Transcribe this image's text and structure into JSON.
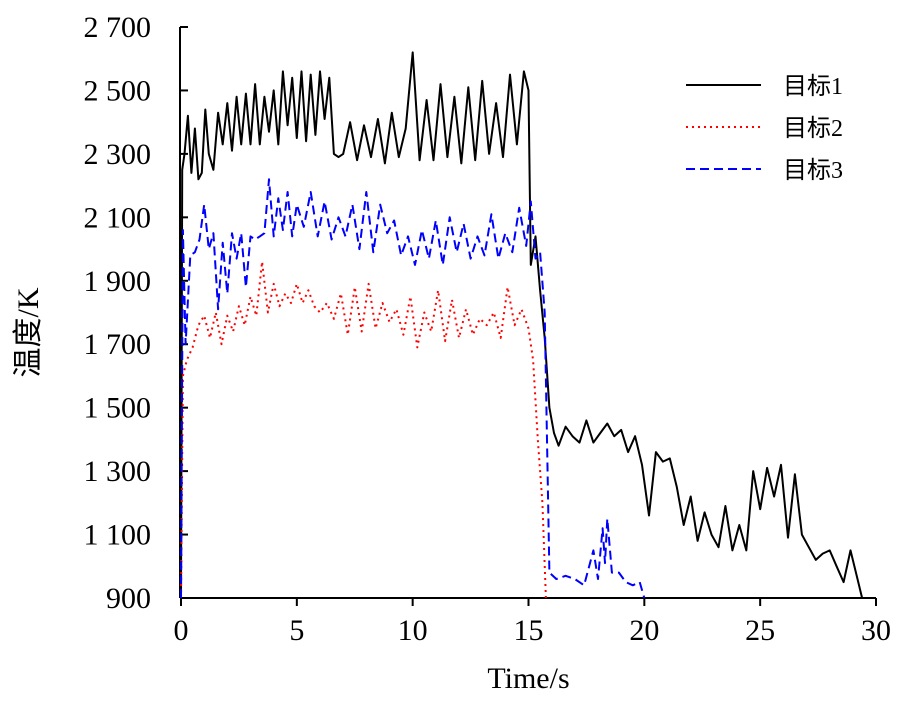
{
  "chart_data": {
    "type": "line",
    "xlabel": "Time/s",
    "ylabel": "温度/K",
    "xlim": [
      0,
      30
    ],
    "ylim": [
      900,
      2700
    ],
    "x_ticks": [
      0,
      5,
      10,
      15,
      20,
      25,
      30
    ],
    "x_tick_labels": [
      "0",
      "5",
      "10",
      "15",
      "20",
      "25",
      "30"
    ],
    "y_ticks": [
      900,
      1100,
      1300,
      1500,
      1700,
      1900,
      2100,
      2300,
      2500,
      2700
    ],
    "y_tick_labels": [
      "900",
      "1 100",
      "1 300",
      "1 500",
      "1 700",
      "1 900",
      "2 100",
      "2 300",
      "2 500",
      "2 700"
    ],
    "grid": false,
    "legend_position": "top-right",
    "series": [
      {
        "name": "目标1",
        "color": "#000000",
        "style": "solid",
        "x": [
          0,
          0.05,
          0.15,
          0.3,
          0.45,
          0.6,
          0.75,
          0.9,
          1.05,
          1.2,
          1.4,
          1.6,
          1.8,
          2.0,
          2.2,
          2.4,
          2.6,
          2.8,
          3.0,
          3.2,
          3.4,
          3.6,
          3.8,
          4.0,
          4.2,
          4.4,
          4.6,
          4.8,
          5.0,
          5.2,
          5.4,
          5.6,
          5.8,
          6.0,
          6.2,
          6.4,
          6.6,
          6.8,
          7.0,
          7.3,
          7.6,
          7.9,
          8.2,
          8.5,
          8.8,
          9.1,
          9.4,
          9.7,
          10.0,
          10.3,
          10.6,
          10.9,
          11.2,
          11.5,
          11.8,
          12.1,
          12.4,
          12.7,
          13.0,
          13.3,
          13.6,
          13.9,
          14.2,
          14.5,
          14.8,
          15.0,
          15.1,
          15.3,
          15.5,
          15.7,
          15.9,
          16.1,
          16.3,
          16.6,
          16.9,
          17.2,
          17.5,
          17.8,
          18.1,
          18.4,
          18.7,
          19.0,
          19.3,
          19.6,
          19.9,
          20.2,
          20.5,
          20.8,
          21.1,
          21.4,
          21.7,
          22.0,
          22.3,
          22.6,
          22.9,
          23.2,
          23.5,
          23.8,
          24.1,
          24.4,
          24.7,
          25.0,
          25.3,
          25.6,
          25.9,
          26.2,
          26.5,
          26.8,
          27.1,
          27.4,
          27.7,
          28.0,
          28.3,
          28.6,
          28.9,
          29.2,
          29.4
        ],
        "y": [
          900,
          2250,
          2300,
          2420,
          2240,
          2380,
          2220,
          2240,
          2440,
          2300,
          2250,
          2430,
          2330,
          2460,
          2310,
          2480,
          2330,
          2490,
          2330,
          2520,
          2330,
          2480,
          2370,
          2500,
          2330,
          2560,
          2390,
          2540,
          2350,
          2560,
          2340,
          2550,
          2360,
          2560,
          2410,
          2540,
          2300,
          2290,
          2300,
          2400,
          2280,
          2390,
          2290,
          2410,
          2270,
          2430,
          2290,
          2380,
          2620,
          2280,
          2470,
          2280,
          2520,
          2290,
          2480,
          2270,
          2510,
          2280,
          2530,
          2300,
          2460,
          2290,
          2550,
          2330,
          2560,
          2500,
          1950,
          2040,
          1870,
          1720,
          1500,
          1420,
          1380,
          1440,
          1410,
          1390,
          1460,
          1390,
          1420,
          1450,
          1410,
          1430,
          1360,
          1410,
          1320,
          1160,
          1360,
          1330,
          1340,
          1250,
          1130,
          1220,
          1080,
          1170,
          1100,
          1060,
          1190,
          1050,
          1130,
          1050,
          1300,
          1180,
          1310,
          1220,
          1320,
          1090,
          1290,
          1100,
          1060,
          1020,
          1040,
          1050,
          1000,
          950,
          1050,
          960,
          900
        ]
      },
      {
        "name": "目标2",
        "color": "#ff0000",
        "style": "dotted",
        "x": [
          0,
          0.08,
          0.25,
          0.5,
          0.75,
          1.0,
          1.25,
          1.5,
          1.75,
          2.0,
          2.25,
          2.5,
          2.75,
          3.0,
          3.25,
          3.5,
          3.75,
          4.0,
          4.25,
          4.5,
          4.75,
          5.0,
          5.25,
          5.5,
          5.75,
          6.0,
          6.3,
          6.6,
          6.9,
          7.2,
          7.5,
          7.8,
          8.1,
          8.4,
          8.7,
          9.0,
          9.3,
          9.6,
          9.9,
          10.2,
          10.5,
          10.8,
          11.1,
          11.4,
          11.7,
          12.0,
          12.3,
          12.6,
          12.9,
          13.2,
          13.5,
          13.8,
          14.1,
          14.4,
          14.7,
          15.0,
          15.2,
          15.4,
          15.6,
          15.75
        ],
        "y": [
          900,
          1600,
          1650,
          1690,
          1760,
          1790,
          1720,
          1800,
          1700,
          1790,
          1740,
          1820,
          1760,
          1850,
          1790,
          1960,
          1800,
          1890,
          1820,
          1860,
          1830,
          1890,
          1830,
          1870,
          1820,
          1800,
          1830,
          1780,
          1860,
          1730,
          1880,
          1740,
          1890,
          1750,
          1830,
          1770,
          1810,
          1730,
          1850,
          1690,
          1800,
          1740,
          1870,
          1710,
          1840,
          1720,
          1810,
          1730,
          1780,
          1760,
          1800,
          1720,
          1880,
          1760,
          1810,
          1750,
          1650,
          1400,
          1200,
          900
        ]
      },
      {
        "name": "目标3",
        "color": "#0000ff",
        "style": "dashed",
        "x": [
          0,
          0.08,
          0.2,
          0.4,
          0.6,
          0.8,
          1.0,
          1.2,
          1.4,
          1.6,
          1.8,
          2.0,
          2.2,
          2.4,
          2.6,
          2.8,
          3.0,
          3.2,
          3.4,
          3.6,
          3.8,
          4.0,
          4.2,
          4.4,
          4.6,
          4.8,
          5.0,
          5.3,
          5.6,
          5.9,
          6.2,
          6.5,
          6.8,
          7.1,
          7.4,
          7.7,
          8.0,
          8.3,
          8.6,
          8.9,
          9.2,
          9.5,
          9.8,
          10.1,
          10.4,
          10.7,
          11.0,
          11.3,
          11.6,
          11.9,
          12.2,
          12.5,
          12.8,
          13.1,
          13.4,
          13.7,
          14.0,
          14.3,
          14.6,
          14.9,
          15.1,
          15.3,
          15.5,
          15.7,
          15.9,
          16.2,
          16.6,
          17.0,
          17.4,
          17.8,
          18.0,
          18.2,
          18.3,
          18.4,
          18.6,
          18.9,
          19.2,
          19.5,
          19.8,
          20.0
        ],
        "y": [
          900,
          2060,
          1700,
          1980,
          1990,
          2030,
          2140,
          2000,
          2050,
          1810,
          2020,
          1860,
          2050,
          1970,
          2050,
          1880,
          2040,
          2030,
          2040,
          2050,
          2220,
          2040,
          2160,
          2060,
          2180,
          2040,
          2140,
          2070,
          2180,
          2040,
          2150,
          2030,
          2100,
          2040,
          2140,
          2000,
          2180,
          1990,
          2140,
          2050,
          2090,
          1980,
          2040,
          1950,
          2060,
          1970,
          2090,
          1950,
          2100,
          1990,
          2080,
          1970,
          2040,
          1980,
          2110,
          1970,
          2050,
          1990,
          2130,
          2010,
          2150,
          1970,
          1990,
          1800,
          980,
          960,
          970,
          960,
          940,
          1050,
          960,
          1120,
          1010,
          1150,
          980,
          980,
          950,
          940,
          950,
          900
        ]
      }
    ]
  }
}
